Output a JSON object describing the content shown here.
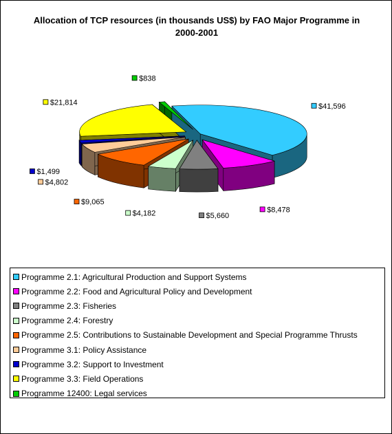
{
  "chart_data": {
    "type": "pie",
    "title": "Allocation of TCP resources (in thousands US$) by FAO Major Programme in 2000-2001",
    "series": [
      {
        "name": "Programme 2.1: Agricultural Production and Support Systems",
        "value": 41596,
        "label": "$41,596",
        "color": "#33ccff"
      },
      {
        "name": "Programme 2.2: Food and Agricultural Policy and Development",
        "value": 8478,
        "label": "$8,478",
        "color": "#ff00ff"
      },
      {
        "name": "Programme 2.3: Fisheries",
        "value": 5660,
        "label": "$5,660",
        "color": "#808080"
      },
      {
        "name": "Programme 2.4: Forestry",
        "value": 4182,
        "label": "$4,182",
        "color": "#ccffcc"
      },
      {
        "name": "Programme 2.5: Contributions to Sustainable Development and Special Programme Thrusts",
        "value": 9065,
        "label": "$9,065",
        "color": "#ff6600"
      },
      {
        "name": "Programme 3.1: Policy Assistance",
        "value": 4802,
        "label": "$4,802",
        "color": "#ffcc99"
      },
      {
        "name": "Programme 3.2: Support to Investment",
        "value": 1499,
        "label": "$1,499",
        "color": "#0000cc"
      },
      {
        "name": "Programme 3.3: Field Operations",
        "value": 21814,
        "label": "$21,814",
        "color": "#ffff00"
      },
      {
        "name": "Programme 12400: Legal services",
        "value": 838,
        "label": "$838",
        "color": "#00cc00"
      }
    ],
    "legend_position": "bottom"
  }
}
